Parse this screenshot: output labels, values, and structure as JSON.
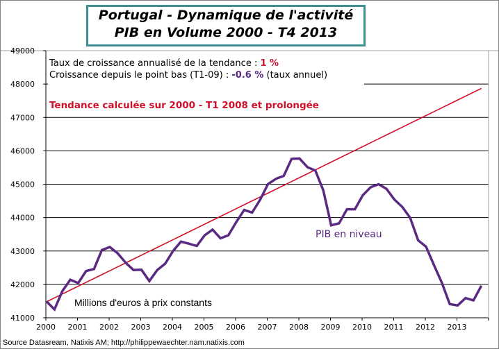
{
  "title_line1": "Portugal  - Dynamique  de  l'activité",
  "title_line2": "PIB  en Volume  2000  - T4 2013",
  "annotations": {
    "trend_rate_label": "Taux de croissance annualisé  de la tendance  : ",
    "trend_rate_value": "1 %",
    "since_low_label": "Croissance depuis le point bas (T1-09) : ",
    "since_low_value": "-0.6 %",
    "since_low_suffix": " (taux annuel)",
    "trend_note": "Tendance calculée  sur 2000 - T1 2008 et prolongée",
    "series_label": "PIB en niveau",
    "unit_note": "Millions d'euros à prix constants"
  },
  "source": "Source Datasream, Natixis AM;  http://philippewaechter.nam.natixis.com",
  "colors": {
    "pib": "#5a2a82",
    "trend": "#d0102a",
    "title_border": "#3f8f93",
    "grid": "#000000"
  },
  "chart_data": {
    "type": "line",
    "x_start": 2000,
    "x_step": 0.25,
    "xlim": [
      2000,
      2014
    ],
    "ylim": [
      41000,
      49000
    ],
    "x_ticks": [
      "2000",
      "2001",
      "2002",
      "2003",
      "2004",
      "2005",
      "2006",
      "2007",
      "2008",
      "2009",
      "2010",
      "2011",
      "2012",
      "2013"
    ],
    "y_ticks": [
      "41000",
      "42000",
      "43000",
      "44000",
      "45000",
      "46000",
      "47000",
      "48000",
      "49000"
    ],
    "grid": "horizontal",
    "series": [
      {
        "name": "PIB en niveau",
        "color": "#5a2a82",
        "values": [
          41490,
          41250,
          41800,
          42140,
          42040,
          42400,
          42460,
          43030,
          43120,
          42930,
          42650,
          42430,
          42440,
          42100,
          42430,
          42620,
          43000,
          43280,
          43220,
          43150,
          43470,
          43640,
          43380,
          43470,
          43870,
          44230,
          44150,
          44530,
          45000,
          45160,
          45250,
          45760,
          45770,
          45510,
          45410,
          44820,
          43770,
          43830,
          44250,
          44250,
          44670,
          44910,
          45000,
          44860,
          44540,
          44320,
          43990,
          43320,
          43130,
          42580,
          42050,
          41410,
          41370,
          41590,
          41520,
          41960
        ]
      },
      {
        "name": "Tendance",
        "color": "#d0102a",
        "start": 41480,
        "end": 47870
      }
    ]
  }
}
